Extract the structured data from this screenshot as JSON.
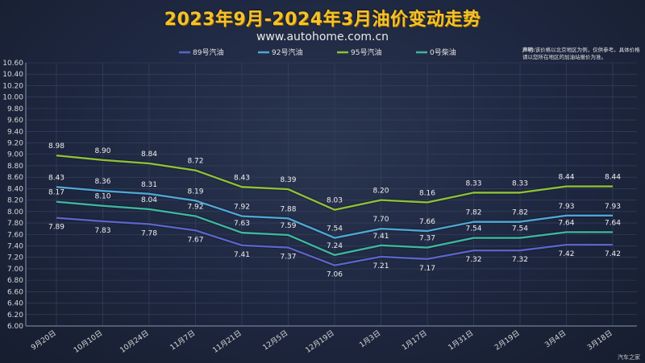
{
  "title": "2023年9月-2024年3月油价变动走势",
  "subtitle": "www.autohome.com.cn",
  "disclaimer": {
    "label": "声明:",
    "text": "该价格以北京地区为例，仅供参考。具体价格请以您所在地区的加油站报价为准。"
  },
  "watermark": "汽车之家",
  "chart_data": {
    "type": "line",
    "title": "2023年9月-2024年3月油价变动走势",
    "xlabel": "",
    "ylabel": "",
    "ylim": [
      6.0,
      10.6
    ],
    "ytick_step": 0.2,
    "ytick_labels": [
      "6.00",
      "6.20",
      "6.40",
      "6.60",
      "6.80",
      "7.00",
      "7.20",
      "7.40",
      "7.60",
      "7.80",
      "8.00",
      "8.20",
      "8.40",
      "8.60",
      "8.80",
      "9.00",
      "9.20",
      "9.40",
      "9.60",
      "9.80",
      "10.00",
      "10.20",
      "10.40",
      "10.60"
    ],
    "grid": true,
    "legend_position": "top",
    "categories": [
      "9月20日",
      "10月10日",
      "10月24日",
      "11月7日",
      "11月21日",
      "12月5日",
      "12月19日",
      "1月3日",
      "1月17日",
      "1月31日",
      "2月19日",
      "3月4日",
      "3月18日"
    ],
    "series": [
      {
        "name": "89号汽油",
        "color": "#5b64c8",
        "values": [
          7.89,
          7.83,
          7.78,
          7.67,
          7.41,
          7.37,
          7.06,
          7.21,
          7.17,
          7.32,
          7.32,
          7.42,
          7.42
        ],
        "labels": [
          "7.89",
          "7.83",
          "7.78",
          "7.67",
          "7.41",
          "7.37",
          "7.06",
          "7.21",
          "7.17",
          "7.32",
          "7.32",
          "7.42",
          "7.42"
        ]
      },
      {
        "name": "92号汽油",
        "color": "#4fa6d6",
        "values": [
          8.43,
          8.36,
          8.31,
          8.19,
          7.92,
          7.88,
          7.54,
          7.7,
          7.66,
          7.82,
          7.82,
          7.93,
          7.93
        ],
        "labels": [
          "8.43",
          "8.36",
          "8.31",
          "8.19",
          "7.92",
          "7.88",
          "7.54",
          "7.70",
          "7.66",
          "7.82",
          "7.82",
          "7.93",
          "7.93"
        ]
      },
      {
        "name": "95号汽油",
        "color": "#8fbf3a",
        "values": [
          8.98,
          8.9,
          8.84,
          8.72,
          8.43,
          8.39,
          8.03,
          8.2,
          8.16,
          8.33,
          8.33,
          8.44,
          8.44
        ],
        "labels": [
          "8.98",
          "8.90",
          "8.84",
          "8.72",
          "8.43",
          "8.39",
          "8.03",
          "8.20",
          "8.16",
          "8.33",
          "8.33",
          "8.44",
          "8.44"
        ]
      },
      {
        "name": "0号柴油",
        "color": "#3fb5a0",
        "values": [
          8.17,
          8.1,
          8.04,
          7.92,
          7.63,
          7.59,
          7.24,
          7.41,
          7.37,
          7.54,
          7.54,
          7.64,
          7.64
        ],
        "labels": [
          "8.17",
          "8.10",
          "8.04",
          "7.92",
          "7.63",
          "7.59",
          "7.24",
          "7.41",
          "7.37",
          "7.54",
          "7.54",
          "7.64",
          "7.64"
        ]
      }
    ]
  }
}
